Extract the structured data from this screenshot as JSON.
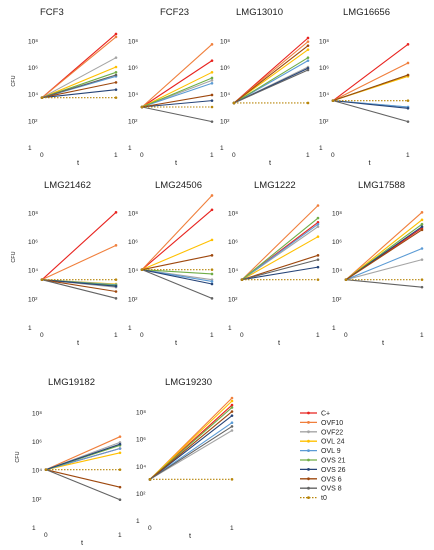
{
  "chart_data": [
    {
      "type": "line",
      "title": "FCF3",
      "ylabel": "CFU",
      "xlabel": "t",
      "x": [
        0,
        1
      ],
      "y_scale": "log",
      "ylim": [
        1,
        1000000000.0
      ],
      "yticks": [
        "1",
        "10²",
        "10⁴",
        "10⁶",
        "10⁸"
      ],
      "xticks": [
        "0",
        "1"
      ],
      "series": [
        {
          "name": "C+",
          "values": [
            5000,
            300000000.0
          ]
        },
        {
          "name": "OVF10",
          "values": [
            5000,
            180000000.0
          ]
        },
        {
          "name": "OVF22",
          "values": [
            5000,
            5000000.0
          ]
        },
        {
          "name": "OVL 24",
          "values": [
            5000,
            1000000.0
          ]
        },
        {
          "name": "OVL 9",
          "values": [
            5000,
            200000.0
          ]
        },
        {
          "name": "OVS 21",
          "values": [
            5000,
            400000.0
          ]
        },
        {
          "name": "OVS 26",
          "values": [
            5000,
            20000.0
          ]
        },
        {
          "name": "OVS 6",
          "values": [
            5000,
            70000.0
          ]
        },
        {
          "name": "OVS 8",
          "values": [
            5000,
            250000.0
          ]
        },
        {
          "name": "t0",
          "values": [
            5000,
            5000
          ]
        }
      ]
    },
    {
      "type": "line",
      "title": "FCF23",
      "ylabel": "",
      "xlabel": "t",
      "x": [
        0,
        1
      ],
      "y_scale": "log",
      "ylim": [
        1,
        1000000000.0
      ],
      "yticks": [
        "1",
        "10²",
        "10⁴",
        "10⁶",
        "10⁸"
      ],
      "xticks": [
        "0",
        "1"
      ],
      "series": [
        {
          "name": "C+",
          "values": [
            1000,
            3000000.0
          ]
        },
        {
          "name": "OVF10",
          "values": [
            1000,
            50000000.0
          ]
        },
        {
          "name": "OVF22",
          "values": [
            1000,
            100000.0
          ]
        },
        {
          "name": "OVL 24",
          "values": [
            1000,
            400000.0
          ]
        },
        {
          "name": "OVL 9",
          "values": [
            1000,
            60000.0
          ]
        },
        {
          "name": "OVS 21",
          "values": [
            1000,
            150000.0
          ]
        },
        {
          "name": "OVS 26",
          "values": [
            1000,
            3000.0
          ]
        },
        {
          "name": "OVS 6",
          "values": [
            1000,
            8000.0
          ]
        },
        {
          "name": "OVS 8",
          "values": [
            1000,
            80
          ]
        },
        {
          "name": "t0",
          "values": [
            1000,
            1000
          ]
        }
      ]
    },
    {
      "type": "line",
      "title": "LMG13010",
      "ylabel": "",
      "xlabel": "t",
      "x": [
        0,
        1
      ],
      "y_scale": "log",
      "ylim": [
        1,
        1000000000.0
      ],
      "yticks": [
        "1",
        "10²",
        "10⁴",
        "10⁶",
        "10⁸"
      ],
      "xticks": [
        "0",
        "1"
      ],
      "series": [
        {
          "name": "C+",
          "values": [
            2000,
            150000000.0
          ]
        },
        {
          "name": "OVF10",
          "values": [
            2000,
            80000000.0
          ]
        },
        {
          "name": "OVF22",
          "values": [
            2000,
            1000000.0
          ]
        },
        {
          "name": "OVL 24",
          "values": [
            2000,
            20000000.0
          ]
        },
        {
          "name": "OVL 9",
          "values": [
            2000,
            3000000.0
          ]
        },
        {
          "name": "OVS 21",
          "values": [
            2000,
            5000000.0
          ]
        },
        {
          "name": "OVS 26",
          "values": [
            2000,
            800000.0
          ]
        },
        {
          "name": "OVS 6",
          "values": [
            2000,
            40000000.0
          ]
        },
        {
          "name": "OVS 8",
          "values": [
            2000,
            600000.0
          ]
        },
        {
          "name": "t0",
          "values": [
            2000,
            2000
          ]
        }
      ]
    },
    {
      "type": "line",
      "title": "LMG16656",
      "ylabel": "",
      "xlabel": "t",
      "x": [
        0,
        1
      ],
      "y_scale": "log",
      "ylim": [
        1,
        1000000000.0
      ],
      "yticks": [
        "1",
        "10²",
        "10⁴",
        "10⁶",
        "10⁸"
      ],
      "xticks": [
        "0",
        "1"
      ],
      "series": [
        {
          "name": "C+",
          "values": [
            3000,
            50000000.0
          ]
        },
        {
          "name": "OVF10",
          "values": [
            3000,
            2000000.0
          ]
        },
        {
          "name": "OVF22",
          "values": [
            3000,
            1000.0
          ]
        },
        {
          "name": "OVL 24",
          "values": [
            3000,
            200000.0
          ]
        },
        {
          "name": "OVL 9",
          "values": [
            3000,
            1000.0
          ]
        },
        {
          "name": "OVS 21",
          "values": [
            3000,
            250000.0
          ]
        },
        {
          "name": "OVS 26",
          "values": [
            3000,
            800
          ]
        },
        {
          "name": "OVS 6",
          "values": [
            3000,
            250000.0
          ]
        },
        {
          "name": "OVS 8",
          "values": [
            3000,
            80
          ]
        },
        {
          "name": "t0",
          "values": [
            3000,
            3000
          ]
        }
      ]
    },
    {
      "type": "line",
      "title": "LMG21462",
      "ylabel": "CFU",
      "xlabel": "t",
      "x": [
        0,
        1
      ],
      "y_scale": "log",
      "ylim": [
        1,
        1000000000.0
      ],
      "yticks": [
        "1",
        "10²",
        "10⁴",
        "10⁶",
        "10⁸"
      ],
      "xticks": [
        "0",
        "1"
      ],
      "series": [
        {
          "name": "C+",
          "values": [
            2000,
            100000000.0
          ]
        },
        {
          "name": "OVF10",
          "values": [
            2000,
            500000.0
          ]
        },
        {
          "name": "OVF22",
          "values": [
            2000,
            600
          ]
        },
        {
          "name": "OVL 24",
          "values": [
            2000,
            1000.0
          ]
        },
        {
          "name": "OVL 9",
          "values": [
            2000,
            900
          ]
        },
        {
          "name": "OVS 21",
          "values": [
            2000,
            800
          ]
        },
        {
          "name": "OVS 26",
          "values": [
            2000,
            700
          ]
        },
        {
          "name": "OVS 6",
          "values": [
            2000,
            300
          ]
        },
        {
          "name": "OVS 8",
          "values": [
            2000,
            100
          ]
        },
        {
          "name": "t0",
          "values": [
            2000,
            2000
          ]
        }
      ]
    },
    {
      "type": "line",
      "title": "LMG24506",
      "ylabel": "",
      "xlabel": "t",
      "x": [
        0,
        1
      ],
      "y_scale": "log",
      "ylim": [
        1,
        1000000000.0
      ],
      "yticks": [
        "1",
        "10²",
        "10⁴",
        "10⁶",
        "10⁸"
      ],
      "xticks": [
        "0",
        "1"
      ],
      "series": [
        {
          "name": "C+",
          "values": [
            10000,
            150000000.0
          ]
        },
        {
          "name": "OVF10",
          "values": [
            10000,
            1500000000.0
          ]
        },
        {
          "name": "OVF22",
          "values": [
            10000,
            2000.0
          ]
        },
        {
          "name": "OVL 24",
          "values": [
            10000,
            1200000.0
          ]
        },
        {
          "name": "OVL 9",
          "values": [
            10000,
            1500.0
          ]
        },
        {
          "name": "OVS 21",
          "values": [
            10000,
            5000.0
          ]
        },
        {
          "name": "OVS 26",
          "values": [
            10000,
            1000.0
          ]
        },
        {
          "name": "OVS 6",
          "values": [
            10000,
            100000.0
          ]
        },
        {
          "name": "OVS 8",
          "values": [
            10000,
            100
          ]
        },
        {
          "name": "t0",
          "values": [
            10000,
            10000
          ]
        }
      ]
    },
    {
      "type": "line",
      "title": "LMG1222",
      "ylabel": "",
      "xlabel": "t",
      "x": [
        0,
        1
      ],
      "y_scale": "log",
      "ylim": [
        1,
        1000000000.0
      ],
      "yticks": [
        "1",
        "10²",
        "10⁴",
        "10⁶",
        "10⁸"
      ],
      "xticks": [
        "0",
        "1"
      ],
      "series": [
        {
          "name": "C+",
          "values": [
            2000,
            20000000.0
          ]
        },
        {
          "name": "OVF10",
          "values": [
            2000,
            300000000.0
          ]
        },
        {
          "name": "OVF22",
          "values": [
            2000,
            10000000.0
          ]
        },
        {
          "name": "OVL 24",
          "values": [
            2000,
            2000000.0
          ]
        },
        {
          "name": "OVL 9",
          "values": [
            2000,
            15000000.0
          ]
        },
        {
          "name": "OVS 21",
          "values": [
            2000,
            40000000.0
          ]
        },
        {
          "name": "OVS 26",
          "values": [
            2000,
            15000.0
          ]
        },
        {
          "name": "OVS 6",
          "values": [
            2000,
            100000.0
          ]
        },
        {
          "name": "OVS 8",
          "values": [
            2000,
            50000.0
          ]
        },
        {
          "name": "t0",
          "values": [
            2000,
            2000
          ]
        }
      ]
    },
    {
      "type": "line",
      "title": "LMG17588",
      "ylabel": "",
      "xlabel": "t",
      "x": [
        0,
        1
      ],
      "y_scale": "log",
      "ylim": [
        1,
        1000000000.0
      ],
      "yticks": [
        "1",
        "10²",
        "10⁴",
        "10⁶",
        "10⁸"
      ],
      "xticks": [
        "0",
        "1"
      ],
      "series": [
        {
          "name": "C+",
          "values": [
            2000,
            8000000.0
          ]
        },
        {
          "name": "OVF10",
          "values": [
            2000,
            100000000.0
          ]
        },
        {
          "name": "OVF22",
          "values": [
            2000,
            50000.0
          ]
        },
        {
          "name": "OVL 24",
          "values": [
            2000,
            30000000.0
          ]
        },
        {
          "name": "OVL 9",
          "values": [
            2000,
            300000.0
          ]
        },
        {
          "name": "OVS 21",
          "values": [
            2000,
            15000000.0
          ]
        },
        {
          "name": "OVS 26",
          "values": [
            2000,
            10000000.0
          ]
        },
        {
          "name": "OVS 6",
          "values": [
            2000,
            6000000.0
          ]
        },
        {
          "name": "OVS 8",
          "values": [
            2000,
            600
          ]
        },
        {
          "name": "t0",
          "values": [
            2000,
            2000
          ]
        }
      ]
    },
    {
      "type": "line",
      "title": "LMG19182",
      "ylabel": "CFU",
      "xlabel": "t",
      "x": [
        0,
        1
      ],
      "y_scale": "log",
      "ylim": [
        1,
        1000000000.0
      ],
      "yticks": [
        "1",
        "10²",
        "10⁴",
        "10⁶",
        "10⁸"
      ],
      "xticks": [
        "0",
        "1"
      ],
      "series": [
        {
          "name": "C+",
          "values": [
            10000,
            300000.0
          ]
        },
        {
          "name": "OVF10",
          "values": [
            10000,
            2000000.0
          ]
        },
        {
          "name": "OVF22",
          "values": [
            10000,
            800000.0
          ]
        },
        {
          "name": "OVL 24",
          "values": [
            10000,
            150000.0
          ]
        },
        {
          "name": "OVL 9",
          "values": [
            10000,
            300000.0
          ]
        },
        {
          "name": "OVS 21",
          "values": [
            10000,
            500000.0
          ]
        },
        {
          "name": "OVS 26",
          "values": [
            10000,
            600000.0
          ]
        },
        {
          "name": "OVS 6",
          "values": [
            10000,
            600
          ]
        },
        {
          "name": "OVS 8",
          "values": [
            10000,
            80
          ]
        },
        {
          "name": "t0",
          "values": [
            10000,
            10000
          ]
        }
      ]
    },
    {
      "type": "line",
      "title": "LMG19230",
      "ylabel": "",
      "xlabel": "t",
      "x": [
        0,
        1
      ],
      "y_scale": "log",
      "ylim": [
        1,
        1000000000.0
      ],
      "yticks": [
        "1",
        "10²",
        "10⁴",
        "10⁶",
        "10⁸"
      ],
      "xticks": [
        "0",
        "1"
      ],
      "series": [
        {
          "name": "C+",
          "values": [
            1000,
            300000000.0
          ]
        },
        {
          "name": "OVF10",
          "values": [
            1000,
            1000000000.0
          ]
        },
        {
          "name": "OVF22",
          "values": [
            1000,
            4000000.0
          ]
        },
        {
          "name": "OVL 24",
          "values": [
            1000,
            600000000.0
          ]
        },
        {
          "name": "OVL 9",
          "values": [
            1000,
            15000000.0
          ]
        },
        {
          "name": "OVS 21",
          "values": [
            1000,
            200000000.0
          ]
        },
        {
          "name": "OVS 26",
          "values": [
            1000,
            50000000.0
          ]
        },
        {
          "name": "OVS 6",
          "values": [
            1000,
            100000000.0
          ]
        },
        {
          "name": "OVS 8",
          "values": [
            1000,
            8000000.0
          ]
        },
        {
          "name": "t0",
          "values": [
            1000,
            1000
          ]
        }
      ]
    }
  ],
  "legend": {
    "placement": "bottom-right",
    "entries": [
      {
        "name": "C+",
        "color": "#e8231f",
        "dotted": false
      },
      {
        "name": "OVF10",
        "color": "#f07f3c",
        "dotted": false
      },
      {
        "name": "OVF22",
        "color": "#a5a5a5",
        "dotted": false
      },
      {
        "name": "OVL 24",
        "color": "#ffc000",
        "dotted": false
      },
      {
        "name": "OVL 9",
        "color": "#5b9bd5",
        "dotted": false
      },
      {
        "name": "OVS 21",
        "color": "#70ad47",
        "dotted": false
      },
      {
        "name": "OVS 26",
        "color": "#264478",
        "dotted": false
      },
      {
        "name": "OVS 6",
        "color": "#9e480e",
        "dotted": false
      },
      {
        "name": "OVS 8",
        "color": "#636363",
        "dotted": false
      },
      {
        "name": "t0",
        "color": "#b8860b",
        "dotted": true
      }
    ]
  }
}
